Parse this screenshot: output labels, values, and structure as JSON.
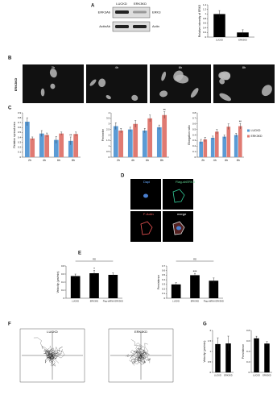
{
  "panels": [
    "A",
    "B",
    "C",
    "D",
    "E",
    "F",
    "G"
  ],
  "blot": {
    "lanes": [
      "LUCKD",
      "ERK3KD"
    ],
    "antibodies": [
      "ERK3Ab",
      "ActinAb"
    ],
    "proteins": [
      "ERK3",
      "Actin"
    ]
  },
  "cell_images": {
    "row_label": "ERK3KD",
    "times": [
      "2h",
      "4h",
      "6h",
      "8h"
    ]
  },
  "stain_images": [
    "Dapi",
    "Flag-shERK3",
    "F-Actin",
    "merge"
  ],
  "tracks": [
    "LUCKD",
    "ERK3KD"
  ],
  "chart_data": [
    {
      "type": "bar",
      "ylabel": "Relative intensity of ERK3",
      "categories": [
        "LUCKD",
        "ERK3KD"
      ],
      "values": [
        1.0,
        0.2
      ],
      "errors": [
        0.15,
        0.12
      ],
      "color": "#000000",
      "ylim": [
        0,
        1.4
      ],
      "yticks": [
        0,
        0.2,
        0.4,
        0.6,
        0.8,
        1,
        1.2,
        1.4
      ]
    },
    {
      "type": "bar",
      "ylabel": "Relative spread area",
      "categories": [
        "2h",
        "4h",
        "6h",
        "8h"
      ],
      "series": [
        {
          "name": "LUCKD",
          "color": "#5b9bd5",
          "values": [
            0.72,
            0.48,
            0.35,
            0.33
          ],
          "errors": [
            0.08,
            0.06,
            0.07,
            0.08
          ]
        },
        {
          "name": "ERK3KD",
          "color": "#e07a72",
          "values": [
            0.38,
            0.45,
            0.48,
            0.47
          ],
          "errors": [
            0.03,
            0.04,
            0.03,
            0.04
          ]
        }
      ],
      "ylim": [
        0,
        0.9
      ],
      "yticks": [
        0,
        0.1,
        0.2,
        0.3,
        0.4,
        0.5,
        0.6,
        0.7,
        0.8,
        0.9
      ],
      "annotations": [
        "**"
      ]
    },
    {
      "type": "bar",
      "ylabel": "Perimeter",
      "categories": [
        "2h",
        "4h",
        "6h",
        "8h"
      ],
      "series": [
        {
          "name": "LUCKD",
          "color": "#5b9bd5",
          "values": [
            2.8,
            2.5,
            2.4,
            2.7
          ],
          "errors": [
            0.3,
            0.2,
            0.2,
            0.2
          ]
        },
        {
          "name": "ERK3KD",
          "color": "#e07a72",
          "values": [
            2.4,
            3.0,
            3.5,
            3.8
          ],
          "errors": [
            0.2,
            0.3,
            0.3,
            0.3
          ]
        }
      ],
      "ylim": [
        0,
        4
      ],
      "yticks": [
        0,
        0.5,
        1,
        1.5,
        2,
        2.5,
        3,
        3.5,
        4
      ],
      "annotations": [
        "**"
      ]
    },
    {
      "type": "bar",
      "ylabel": "Elongation ratio",
      "categories": [
        "2h",
        "4h",
        "6h",
        "8h"
      ],
      "series": [
        {
          "name": "LUCKD",
          "color": "#5b9bd5",
          "values": [
            0.28,
            0.35,
            0.37,
            0.4
          ],
          "errors": [
            0.04,
            0.03,
            0.03,
            0.03
          ]
        },
        {
          "name": "ERK3KD",
          "color": "#e07a72",
          "values": [
            0.32,
            0.46,
            0.55,
            0.56
          ],
          "errors": [
            0.04,
            0.04,
            0.05,
            0.05
          ]
        }
      ],
      "ylim": [
        0,
        0.8
      ],
      "yticks": [
        0,
        0.1,
        0.2,
        0.3,
        0.4,
        0.5,
        0.6,
        0.7,
        0.8
      ],
      "legend": true,
      "annotations": [
        "**"
      ]
    },
    {
      "type": "bar",
      "ylabel": "Velocity (µm/min)",
      "categories": [
        "LUCKD",
        "ERK3KD",
        "Flag-shRNA ERK3KD"
      ],
      "values": [
        0.55,
        0.62,
        0.58
      ],
      "errors": [
        0.05,
        0.07,
        0.05
      ],
      "color": "#000000",
      "ylim": [
        0,
        0.8
      ],
      "yticks": [
        0,
        0.2,
        0.4,
        0.6,
        0.8
      ],
      "annotations": [
        "ns",
        "*"
      ]
    },
    {
      "type": "bar",
      "ylabel": "Persistence",
      "categories": [
        "LUCKD",
        "ERK3KD",
        "Flag-shRNA ERK3KD"
      ],
      "values": [
        0.3,
        0.5,
        0.38
      ],
      "errors": [
        0.04,
        0.04,
        0.06
      ],
      "color": "#000000",
      "ylim": [
        0,
        0.7
      ],
      "yticks": [
        0,
        0.1,
        0.2,
        0.3,
        0.4,
        0.5,
        0.6,
        0.7
      ],
      "annotations": [
        "ns",
        "***"
      ]
    },
    {
      "type": "bar",
      "ylabel": "Velocity (µm/min)",
      "categories": [
        "LUCKD",
        "ERK3KD"
      ],
      "values": [
        1.35,
        1.38
      ],
      "errors": [
        0.3,
        0.35
      ],
      "color": "#000000",
      "ylim": [
        0,
        2
      ],
      "yticks": [
        0,
        0.5,
        1,
        1.5,
        2
      ]
    },
    {
      "type": "bar",
      "ylabel": "Persistence",
      "categories": [
        "LUCKD",
        "ERK3KD"
      ],
      "values": [
        0.65,
        0.55
      ],
      "errors": [
        0.04,
        0.04
      ],
      "color": "#000000",
      "ylim": [
        0,
        0.8
      ],
      "yticks": [
        0,
        0.2,
        0.4,
        0.6,
        0.8
      ]
    }
  ]
}
